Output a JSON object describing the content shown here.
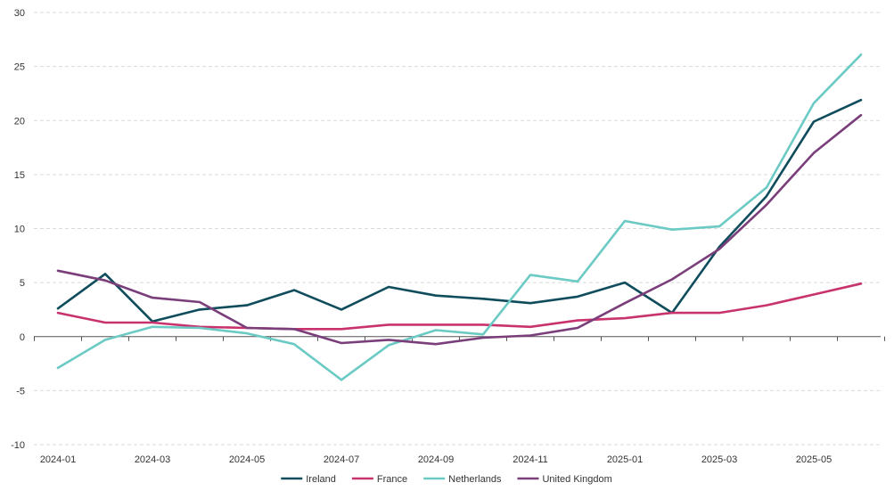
{
  "chart_data": {
    "type": "line",
    "title": "",
    "xlabel": "",
    "ylabel": "",
    "ylim": [
      -10,
      30
    ],
    "yticks": [
      -10,
      -5,
      0,
      5,
      10,
      15,
      20,
      25,
      30
    ],
    "grid": "horizontal-dashed",
    "legend_position": "bottom-center",
    "x": [
      "2024-01",
      "2024-02",
      "2024-03",
      "2024-04",
      "2024-05",
      "2024-06",
      "2024-07",
      "2024-08",
      "2024-09",
      "2024-10",
      "2024-11",
      "2024-12",
      "2025-01",
      "2025-02",
      "2025-03",
      "2025-04",
      "2025-05",
      "2025-06"
    ],
    "x_tick_labels": [
      "2024-01",
      "2024-03",
      "2024-05",
      "2024-07",
      "2024-09",
      "2024-11",
      "2025-01",
      "2025-03",
      "2025-05"
    ],
    "series": [
      {
        "name": "Ireland",
        "color": "#0f4c5c",
        "values": [
          2.6,
          5.8,
          1.4,
          2.5,
          2.9,
          4.3,
          2.5,
          4.6,
          3.8,
          3.5,
          3.1,
          3.7,
          5.0,
          2.2,
          8.3,
          13.0,
          19.9,
          21.9
        ]
      },
      {
        "name": "France",
        "color": "#c8336e",
        "values": [
          2.2,
          1.3,
          1.3,
          0.9,
          0.8,
          0.7,
          0.7,
          1.1,
          1.1,
          1.1,
          0.9,
          1.5,
          1.7,
          2.2,
          2.2,
          2.9,
          3.9,
          4.9
        ]
      },
      {
        "name": "Netherlands",
        "color": "#6bcac4",
        "values": [
          -2.9,
          -0.3,
          0.9,
          0.8,
          0.3,
          -0.7,
          -4.0,
          -0.8,
          0.6,
          0.2,
          5.7,
          5.1,
          10.7,
          9.9,
          10.2,
          13.8,
          21.6,
          26.1
        ]
      },
      {
        "name": "United Kingdom",
        "color": "#7a3e7a",
        "values": [
          6.1,
          5.2,
          3.6,
          3.2,
          0.8,
          0.7,
          -0.6,
          -0.3,
          -0.7,
          -0.1,
          0.1,
          0.8,
          3.1,
          5.3,
          8.1,
          12.2,
          17.0,
          20.5
        ]
      }
    ]
  }
}
